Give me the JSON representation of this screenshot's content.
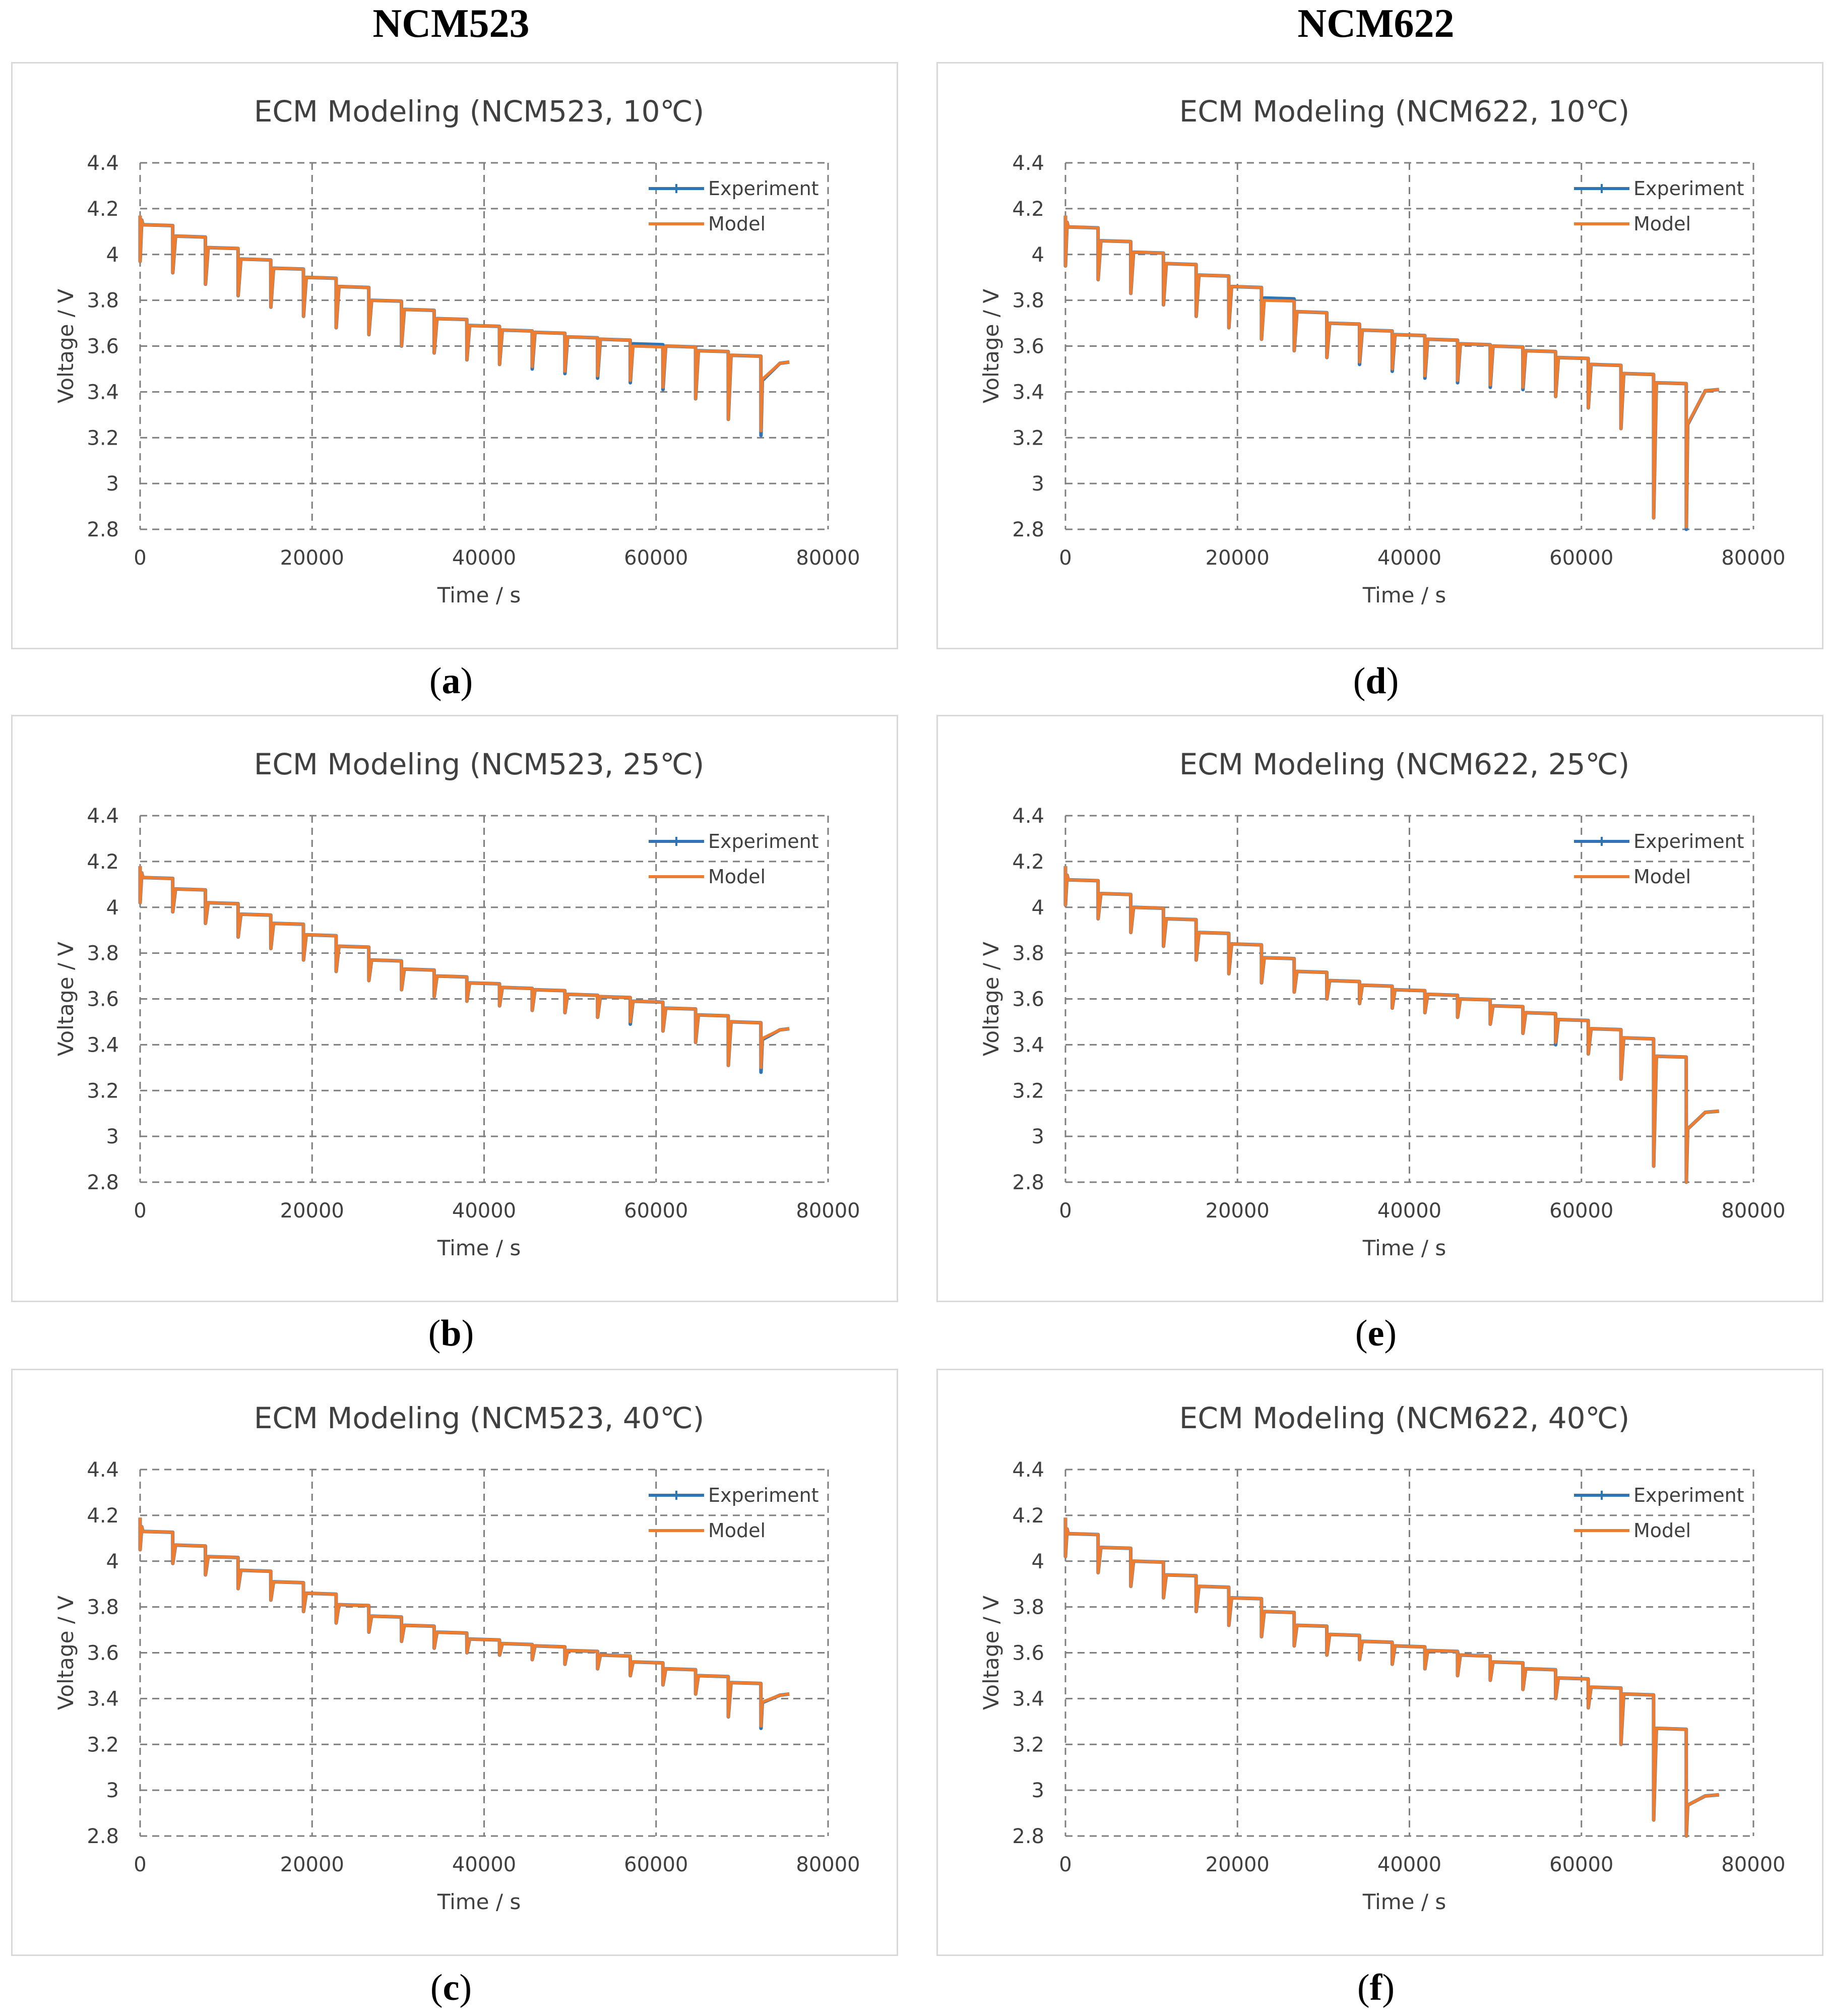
{
  "column_headers": [
    "NCM523",
    "NCM622"
  ],
  "legend": {
    "experiment": "Experiment",
    "model": "Model"
  },
  "colors": {
    "experiment": "#2e75b6",
    "model": "#ed7d31",
    "grid": "#7f7f7f"
  },
  "chart_data": [
    {
      "id": "a",
      "type": "line",
      "caption_letter": "a",
      "title": "ECM Modeling (NCM523, 10℃)",
      "xlabel": "Time / s",
      "ylabel": "Voltage / V",
      "xlim": [
        0,
        80000
      ],
      "ylim": [
        2.8,
        4.4
      ],
      "x_ticks": [
        "0",
        "20000",
        "40000",
        "60000",
        "80000"
      ],
      "y_ticks": [
        "2.8",
        "3",
        "3.2",
        "3.4",
        "3.6",
        "3.8",
        "4",
        "4.2",
        "4.4"
      ],
      "pulse_period_s": 3800,
      "pulse_duration_s": 320,
      "x_end": 75500,
      "series": [
        {
          "name": "Experiment",
          "start_voltage": 4.17,
          "end_voltage": 3.53,
          "plateaus": [
            4.13,
            4.08,
            4.03,
            3.98,
            3.94,
            3.9,
            3.86,
            3.8,
            3.76,
            3.72,
            3.69,
            3.67,
            3.66,
            3.64,
            3.63,
            3.61,
            3.6,
            3.58,
            3.56
          ],
          "minima": [
            3.97,
            3.92,
            3.87,
            3.82,
            3.77,
            3.73,
            3.68,
            3.65,
            3.6,
            3.57,
            3.54,
            3.52,
            3.5,
            3.48,
            3.46,
            3.44,
            3.41,
            3.37,
            3.28,
            3.21
          ]
        },
        {
          "name": "Model",
          "start_voltage": 4.17,
          "end_voltage": 3.53,
          "plateaus": [
            4.13,
            4.08,
            4.03,
            3.98,
            3.94,
            3.9,
            3.86,
            3.8,
            3.76,
            3.72,
            3.69,
            3.67,
            3.66,
            3.64,
            3.63,
            3.6,
            3.6,
            3.58,
            3.56
          ],
          "minima": [
            3.97,
            3.92,
            3.87,
            3.82,
            3.77,
            3.73,
            3.68,
            3.65,
            3.6,
            3.57,
            3.54,
            3.52,
            3.51,
            3.49,
            3.47,
            3.45,
            3.42,
            3.37,
            3.28,
            3.23
          ]
        }
      ]
    },
    {
      "id": "b",
      "type": "line",
      "caption_letter": "b",
      "title": "ECM Modeling (NCM523, 25℃)",
      "xlabel": "Time / s",
      "ylabel": "Voltage / V",
      "xlim": [
        0,
        80000
      ],
      "ylim": [
        2.8,
        4.4
      ],
      "x_ticks": [
        "0",
        "20000",
        "40000",
        "60000",
        "80000"
      ],
      "y_ticks": [
        "2.8",
        "3",
        "3.2",
        "3.4",
        "3.6",
        "3.8",
        "4",
        "4.2",
        "4.4"
      ],
      "pulse_period_s": 3800,
      "pulse_duration_s": 320,
      "x_end": 75500,
      "series": [
        {
          "name": "Experiment",
          "start_voltage": 4.18,
          "end_voltage": 3.47,
          "plateaus": [
            4.13,
            4.08,
            4.02,
            3.97,
            3.93,
            3.88,
            3.83,
            3.77,
            3.73,
            3.7,
            3.67,
            3.65,
            3.64,
            3.62,
            3.61,
            3.59,
            3.56,
            3.53,
            3.5
          ],
          "minima": [
            4.02,
            3.98,
            3.93,
            3.87,
            3.82,
            3.77,
            3.72,
            3.68,
            3.64,
            3.61,
            3.59,
            3.57,
            3.55,
            3.54,
            3.52,
            3.49,
            3.46,
            3.41,
            3.31,
            3.28
          ]
        },
        {
          "name": "Model",
          "start_voltage": 4.18,
          "end_voltage": 3.47,
          "plateaus": [
            4.13,
            4.08,
            4.02,
            3.97,
            3.93,
            3.88,
            3.83,
            3.77,
            3.73,
            3.7,
            3.67,
            3.65,
            3.64,
            3.62,
            3.61,
            3.59,
            3.56,
            3.53,
            3.5
          ],
          "minima": [
            4.02,
            3.98,
            3.93,
            3.87,
            3.82,
            3.77,
            3.72,
            3.68,
            3.64,
            3.61,
            3.59,
            3.57,
            3.55,
            3.54,
            3.52,
            3.5,
            3.46,
            3.41,
            3.31,
            3.3
          ]
        }
      ]
    },
    {
      "id": "c",
      "type": "line",
      "caption_letter": "c",
      "title": "ECM Modeling (NCM523, 40℃)",
      "xlabel": "Time / s",
      "ylabel": "Voltage / V",
      "xlim": [
        0,
        80000
      ],
      "ylim": [
        2.8,
        4.4
      ],
      "x_ticks": [
        "0",
        "20000",
        "40000",
        "60000",
        "80000"
      ],
      "y_ticks": [
        "2.8",
        "3",
        "3.2",
        "3.4",
        "3.6",
        "3.8",
        "4",
        "4.2",
        "4.4"
      ],
      "pulse_period_s": 3800,
      "pulse_duration_s": 320,
      "x_end": 75500,
      "series": [
        {
          "name": "Experiment",
          "start_voltage": 4.19,
          "end_voltage": 3.42,
          "plateaus": [
            4.13,
            4.07,
            4.02,
            3.96,
            3.91,
            3.86,
            3.81,
            3.76,
            3.72,
            3.69,
            3.66,
            3.64,
            3.63,
            3.61,
            3.59,
            3.56,
            3.53,
            3.5,
            3.47
          ],
          "minima": [
            4.05,
            3.99,
            3.94,
            3.88,
            3.83,
            3.78,
            3.73,
            3.69,
            3.65,
            3.62,
            3.6,
            3.59,
            3.57,
            3.55,
            3.53,
            3.5,
            3.46,
            3.42,
            3.32,
            3.27
          ]
        },
        {
          "name": "Model",
          "start_voltage": 4.19,
          "end_voltage": 3.42,
          "plateaus": [
            4.13,
            4.07,
            4.02,
            3.96,
            3.91,
            3.86,
            3.81,
            3.76,
            3.72,
            3.69,
            3.66,
            3.64,
            3.63,
            3.61,
            3.59,
            3.56,
            3.53,
            3.5,
            3.47
          ],
          "minima": [
            4.05,
            3.99,
            3.94,
            3.88,
            3.83,
            3.78,
            3.73,
            3.69,
            3.65,
            3.62,
            3.6,
            3.59,
            3.57,
            3.55,
            3.53,
            3.5,
            3.46,
            3.42,
            3.32,
            3.28
          ]
        }
      ]
    },
    {
      "id": "d",
      "type": "line",
      "caption_letter": "d",
      "title": "ECM Modeling (NCM622, 10℃)",
      "xlabel": "Time / s",
      "ylabel": "Voltage / V",
      "xlim": [
        0,
        80000
      ],
      "ylim": [
        2.8,
        4.4
      ],
      "x_ticks": [
        "0",
        "20000",
        "40000",
        "60000",
        "80000"
      ],
      "y_ticks": [
        "2.8",
        "3",
        "3.2",
        "3.4",
        "3.6",
        "3.8",
        "4",
        "4.2",
        "4.4"
      ],
      "pulse_period_s": 3800,
      "pulse_duration_s": 320,
      "x_end": 76000,
      "series": [
        {
          "name": "Experiment",
          "start_voltage": 4.17,
          "end_voltage": 3.41,
          "plateaus": [
            4.12,
            4.06,
            4.01,
            3.96,
            3.91,
            3.86,
            3.81,
            3.75,
            3.7,
            3.67,
            3.65,
            3.63,
            3.61,
            3.6,
            3.58,
            3.55,
            3.52,
            3.48,
            3.44
          ],
          "minima": [
            3.95,
            3.89,
            3.83,
            3.78,
            3.73,
            3.68,
            3.63,
            3.58,
            3.55,
            3.52,
            3.49,
            3.46,
            3.44,
            3.42,
            3.41,
            3.38,
            3.33,
            3.24,
            2.85,
            2.8
          ]
        },
        {
          "name": "Model",
          "start_voltage": 4.17,
          "end_voltage": 3.41,
          "plateaus": [
            4.12,
            4.06,
            4.01,
            3.96,
            3.91,
            3.86,
            3.8,
            3.75,
            3.7,
            3.67,
            3.65,
            3.63,
            3.61,
            3.6,
            3.58,
            3.55,
            3.52,
            3.48,
            3.44
          ],
          "minima": [
            3.95,
            3.89,
            3.83,
            3.78,
            3.73,
            3.68,
            3.63,
            3.58,
            3.55,
            3.53,
            3.5,
            3.47,
            3.45,
            3.43,
            3.42,
            3.38,
            3.33,
            3.24,
            2.85,
            2.81
          ]
        }
      ]
    },
    {
      "id": "e",
      "type": "line",
      "caption_letter": "e",
      "title": "ECM Modeling (NCM622, 25℃)",
      "xlabel": "Time / s",
      "ylabel": "Voltage / V",
      "xlim": [
        0,
        80000
      ],
      "ylim": [
        2.8,
        4.4
      ],
      "x_ticks": [
        "0",
        "20000",
        "40000",
        "60000",
        "80000"
      ],
      "y_ticks": [
        "2.8",
        "3",
        "3.2",
        "3.4",
        "3.6",
        "3.8",
        "4",
        "4.2",
        "4.4"
      ],
      "pulse_period_s": 3800,
      "pulse_duration_s": 320,
      "x_end": 76000,
      "series": [
        {
          "name": "Experiment",
          "start_voltage": 4.18,
          "end_voltage": 3.11,
          "plateaus": [
            4.12,
            4.06,
            4.0,
            3.95,
            3.89,
            3.84,
            3.78,
            3.72,
            3.68,
            3.66,
            3.64,
            3.62,
            3.6,
            3.57,
            3.54,
            3.51,
            3.47,
            3.43,
            3.35
          ],
          "minima": [
            4.01,
            3.95,
            3.89,
            3.83,
            3.77,
            3.71,
            3.67,
            3.63,
            3.6,
            3.58,
            3.56,
            3.54,
            3.52,
            3.49,
            3.45,
            3.4,
            3.36,
            3.25,
            2.87,
            2.8
          ]
        },
        {
          "name": "Model",
          "start_voltage": 4.18,
          "end_voltage": 3.11,
          "plateaus": [
            4.12,
            4.06,
            4.0,
            3.95,
            3.89,
            3.84,
            3.78,
            3.72,
            3.68,
            3.66,
            3.64,
            3.62,
            3.6,
            3.57,
            3.54,
            3.51,
            3.47,
            3.43,
            3.35
          ],
          "minima": [
            4.01,
            3.95,
            3.89,
            3.83,
            3.77,
            3.71,
            3.67,
            3.63,
            3.6,
            3.58,
            3.56,
            3.54,
            3.52,
            3.49,
            3.45,
            3.41,
            3.36,
            3.25,
            2.87,
            2.8
          ]
        }
      ]
    },
    {
      "id": "f",
      "type": "line",
      "caption_letter": "f",
      "title": "ECM Modeling (NCM622, 40℃)",
      "xlabel": "Time / s",
      "ylabel": "Voltage / V",
      "xlim": [
        0,
        80000
      ],
      "ylim": [
        2.8,
        4.4
      ],
      "x_ticks": [
        "0",
        "20000",
        "40000",
        "60000",
        "80000"
      ],
      "y_ticks": [
        "2.8",
        "3",
        "3.2",
        "3.4",
        "3.6",
        "3.8",
        "4",
        "4.2",
        "4.4"
      ],
      "pulse_period_s": 3800,
      "pulse_duration_s": 320,
      "x_end": 76000,
      "series": [
        {
          "name": "Experiment",
          "start_voltage": 4.19,
          "end_voltage": 2.98,
          "plateaus": [
            4.12,
            4.06,
            4.0,
            3.94,
            3.89,
            3.84,
            3.78,
            3.72,
            3.68,
            3.65,
            3.63,
            3.61,
            3.59,
            3.56,
            3.53,
            3.49,
            3.45,
            3.42,
            3.27
          ],
          "minima": [
            4.02,
            3.95,
            3.89,
            3.84,
            3.78,
            3.72,
            3.67,
            3.63,
            3.59,
            3.57,
            3.55,
            3.53,
            3.5,
            3.48,
            3.44,
            3.4,
            3.36,
            3.2,
            2.87,
            2.8
          ]
        },
        {
          "name": "Model",
          "start_voltage": 4.19,
          "end_voltage": 2.98,
          "plateaus": [
            4.12,
            4.06,
            4.0,
            3.94,
            3.89,
            3.84,
            3.78,
            3.72,
            3.68,
            3.65,
            3.63,
            3.61,
            3.59,
            3.56,
            3.53,
            3.49,
            3.45,
            3.42,
            3.27
          ],
          "minima": [
            4.02,
            3.95,
            3.89,
            3.84,
            3.78,
            3.72,
            3.67,
            3.63,
            3.59,
            3.57,
            3.55,
            3.53,
            3.5,
            3.48,
            3.44,
            3.4,
            3.36,
            3.2,
            2.87,
            2.8
          ]
        }
      ]
    }
  ]
}
